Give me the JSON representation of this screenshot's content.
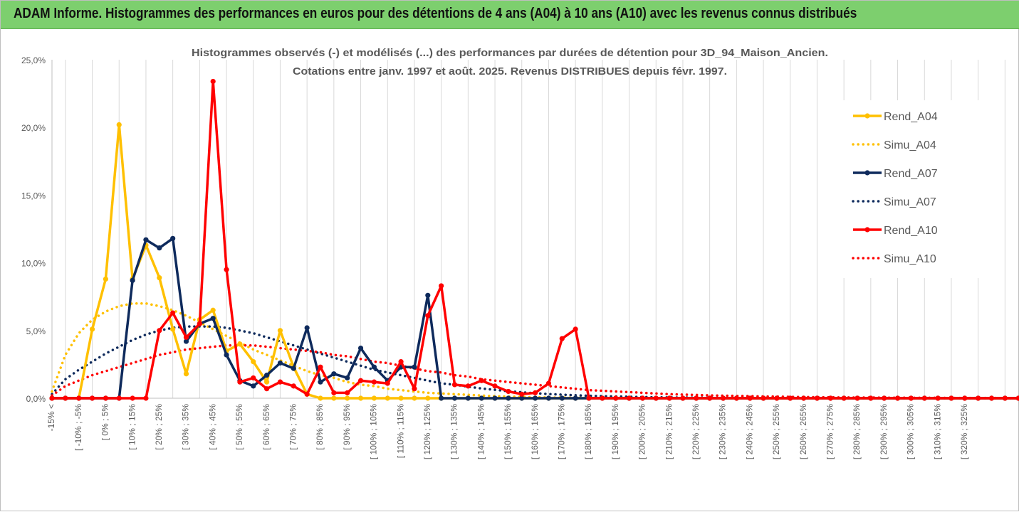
{
  "banner": {
    "title": "ADAM Informe. Histogrammes des performances en euros pour des détentions de 4 ans (A04) à 10 ans (A10) avec les revenus connus distribués",
    "color": "#7dcf6e"
  },
  "chart_data": {
    "type": "line",
    "title": "Histogrammes observés (-) et modélisés (...) des performances par durées de détention pour 3D_94_Maison_Ancien.",
    "subtitle": "Cotations entre janv. 1997 et août. 2025. Revenus DISTRIBUES depuis févr. 1997.",
    "xlabel": "",
    "ylabel": "",
    "ylim": [
      0,
      25
    ],
    "yticks": [
      0,
      5,
      10,
      15,
      20,
      25
    ],
    "ytick_labels": [
      "0,0%",
      "5,0%",
      "10,0%",
      "15,0%",
      "20,0%",
      "25,0%"
    ],
    "grid": "vertical",
    "legend": "right",
    "x_tick_labels": [
      "-15% <",
      "[ -10% ; -5%",
      "[ 0% ; 5%",
      "[ 10% ; 15%",
      "[ 20% ; 25%",
      "[ 30% ; 35%",
      "[ 40% ; 45%",
      "[ 50% ; 55%",
      "[ 60% ; 65%",
      "[ 70% ; 75%",
      "[ 80% ; 85%",
      "[ 90% ; 95%",
      "[ 100% ; 105%",
      "[ 110% ; 115%",
      "[ 120% ; 125%",
      "[ 130% ; 135%",
      "[ 140% ; 145%",
      "[ 150% ; 155%",
      "[ 160% ; 165%",
      "[ 170% ; 175%",
      "[ 180% ; 185%",
      "[ 190% ; 195%",
      "[ 200% ; 205%",
      "[ 210% ; 215%",
      "[ 220% ; 225%",
      "[ 230% ; 235%",
      "[ 240% ; 245%",
      "[ 250% ; 255%",
      "[ 260% ; 265%",
      "[ 270% ; 275%",
      "[ 280% ; 285%",
      "[ 290% ; 295%",
      "[ 300% ; 305%",
      "[ 310% ; 315%",
      "[ 320% ; 325%"
    ],
    "series": [
      {
        "name": "Rend_A04",
        "color": "#ffc000",
        "style": "solid",
        "markers": true,
        "values": [
          0,
          0,
          0,
          5.1,
          8.8,
          20.2,
          8.8,
          11.3,
          8.9,
          5.1,
          1.8,
          5.8,
          6.5,
          3.5,
          4.0,
          2.7,
          1.2,
          5.0,
          2.3,
          0.3,
          0,
          0,
          0,
          0,
          0,
          0,
          0,
          0,
          0,
          0,
          0,
          0,
          0,
          0,
          0,
          0,
          0,
          0,
          0,
          0,
          0,
          0,
          0,
          0,
          0,
          0,
          0,
          0,
          0,
          0,
          0,
          0,
          0,
          0,
          0,
          0,
          0,
          0,
          0,
          0,
          0,
          0,
          0,
          0,
          0,
          0,
          0,
          0,
          0,
          0,
          0,
          0,
          0,
          0,
          0
        ]
      },
      {
        "name": "Simu_A04",
        "color": "#ffc000",
        "style": "dotted",
        "markers": false,
        "values": [
          0.5,
          3.2,
          4.8,
          5.8,
          6.4,
          6.8,
          7.0,
          7.0,
          6.8,
          6.5,
          6.1,
          5.6,
          5.1,
          4.6,
          4.1,
          3.6,
          3.2,
          2.8,
          2.4,
          2.0,
          1.7,
          1.5,
          1.2,
          1.0,
          0.9,
          0.7,
          0.6,
          0.5,
          0.4,
          0.35,
          0.3,
          0.25,
          0.2,
          0.15,
          0.12,
          0.1,
          0.08,
          0.06,
          0.05,
          0.04,
          0.03,
          0.02,
          0.02,
          0.01,
          0.01,
          0.01,
          0,
          0,
          0,
          0,
          0,
          0,
          0,
          0,
          0,
          0,
          0,
          0,
          0,
          0,
          0,
          0,
          0,
          0,
          0,
          0,
          0,
          0,
          0,
          0,
          0,
          0,
          0,
          0,
          0
        ]
      },
      {
        "name": "Rend_A07",
        "color": "#0e2a5c",
        "style": "solid",
        "markers": true,
        "values": [
          0,
          0,
          0,
          0,
          0,
          0,
          8.7,
          11.7,
          11.1,
          11.8,
          4.2,
          5.5,
          5.9,
          3.2,
          1.3,
          0.9,
          1.7,
          2.6,
          2.2,
          5.2,
          1.2,
          1.8,
          1.5,
          3.7,
          2.3,
          1.3,
          2.3,
          2.3,
          7.6,
          0,
          0,
          0,
          0,
          0,
          0,
          0,
          0,
          0,
          0,
          0,
          0,
          0,
          0,
          0,
          0,
          0,
          0,
          0,
          0,
          0,
          0,
          0,
          0,
          0,
          0,
          0,
          0,
          0,
          0,
          0,
          0,
          0,
          0,
          0,
          0,
          0,
          0,
          0,
          0,
          0,
          0,
          0,
          0,
          0,
          0
        ]
      },
      {
        "name": "Simu_A07",
        "color": "#0e2a5c",
        "style": "dotted",
        "markers": false,
        "values": [
          0.3,
          1.4,
          2.1,
          2.7,
          3.3,
          3.8,
          4.3,
          4.7,
          5.0,
          5.2,
          5.3,
          5.3,
          5.3,
          5.2,
          5.0,
          4.8,
          4.5,
          4.2,
          3.9,
          3.6,
          3.3,
          3.0,
          2.7,
          2.4,
          2.1,
          1.9,
          1.7,
          1.5,
          1.3,
          1.1,
          1.0,
          0.85,
          0.72,
          0.62,
          0.52,
          0.44,
          0.37,
          0.31,
          0.26,
          0.22,
          0.18,
          0.15,
          0.13,
          0.11,
          0.09,
          0.07,
          0.06,
          0.05,
          0.04,
          0.03,
          0.03,
          0.02,
          0.02,
          0.02,
          0.01,
          0.01,
          0.01,
          0.01,
          0.01,
          0,
          0,
          0,
          0,
          0,
          0,
          0,
          0,
          0,
          0,
          0,
          0,
          0,
          0,
          0,
          0
        ]
      },
      {
        "name": "Rend_A10",
        "color": "#ff0000",
        "style": "solid",
        "markers": true,
        "values": [
          0,
          0,
          0,
          0,
          0,
          0,
          0,
          0,
          5.0,
          6.3,
          4.5,
          5.5,
          23.4,
          9.5,
          1.2,
          1.5,
          0.7,
          1.2,
          0.9,
          0.3,
          2.3,
          0.4,
          0.4,
          1.3,
          1.2,
          1.1,
          2.7,
          0.7,
          6.1,
          8.3,
          1.0,
          0.9,
          1.3,
          0.9,
          0.5,
          0.3,
          0.4,
          1.1,
          4.4,
          5.1,
          0,
          0,
          0,
          0,
          0,
          0,
          0,
          0,
          0,
          0,
          0,
          0,
          0,
          0,
          0,
          0,
          0,
          0,
          0,
          0,
          0,
          0,
          0,
          0,
          0,
          0,
          0,
          0,
          0,
          0,
          0,
          0,
          0,
          0,
          0
        ]
      },
      {
        "name": "Simu_A10",
        "color": "#ff0000",
        "style": "dotted",
        "markers": false,
        "values": [
          0.2,
          0.9,
          1.3,
          1.7,
          2.0,
          2.3,
          2.6,
          2.9,
          3.2,
          3.4,
          3.6,
          3.7,
          3.8,
          3.9,
          3.9,
          3.9,
          3.8,
          3.7,
          3.6,
          3.5,
          3.4,
          3.2,
          3.1,
          2.9,
          2.7,
          2.6,
          2.4,
          2.2,
          2.0,
          1.9,
          1.7,
          1.6,
          1.4,
          1.3,
          1.2,
          1.1,
          1.0,
          0.9,
          0.8,
          0.7,
          0.6,
          0.55,
          0.5,
          0.45,
          0.4,
          0.35,
          0.3,
          0.27,
          0.24,
          0.21,
          0.19,
          0.17,
          0.15,
          0.13,
          0.12,
          0.1,
          0.09,
          0.08,
          0.07,
          0.06,
          0.05,
          0.05,
          0.04,
          0.04,
          0.03,
          0.03,
          0.03,
          0.02,
          0.02,
          0.02,
          0.02,
          0.01,
          0.01,
          0.01,
          0.01
        ]
      }
    ]
  }
}
